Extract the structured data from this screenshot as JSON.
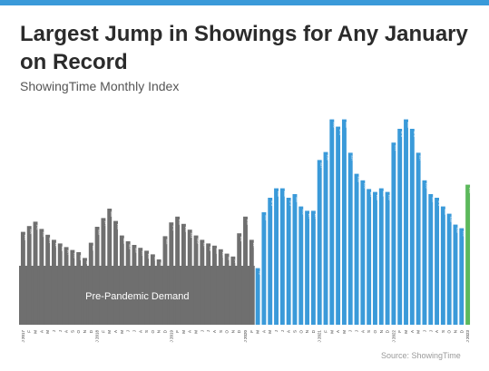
{
  "title": "Largest Jump in Showings for Any January on Record",
  "subtitle": "ShowingTime Monthly Index",
  "source": "Source: ShowingTime",
  "colors": {
    "accent_bar": "#3a9ad9",
    "pre_pandemic": "#6f6f6f",
    "pandemic": "#3a9ad9",
    "latest": "#5cb85c",
    "band": "#6f6f6f"
  },
  "chart_data": {
    "type": "bar",
    "annotations": [
      "Pre-Pandemic Demand"
    ],
    "categories": [
      "J 2017",
      "F",
      "M",
      "A",
      "M",
      "J",
      "J",
      "A",
      "S",
      "O",
      "N",
      "D",
      "J 2018",
      "F",
      "M",
      "A",
      "M",
      "J",
      "J",
      "A",
      "S",
      "O",
      "N",
      "D",
      "J 2019",
      "F",
      "M",
      "A",
      "M",
      "J",
      "J",
      "A",
      "S",
      "O",
      "N",
      "D",
      "J 2020",
      "F",
      "M",
      "A",
      "M",
      "J",
      "J",
      "A",
      "S",
      "O",
      "N",
      "D",
      "J 2021",
      "F",
      "M",
      "A",
      "M",
      "J",
      "J",
      "A",
      "S",
      "O",
      "N",
      "D",
      "J 2022",
      "F",
      "M",
      "A",
      "M",
      "J",
      "J",
      "A",
      "S",
      "O",
      "N",
      "D",
      "J 2023"
    ],
    "values": [
      128,
      136,
      142,
      132,
      124,
      117,
      112,
      107,
      103,
      100,
      92,
      113,
      135,
      147,
      160,
      143,
      123,
      115,
      110,
      106,
      102,
      97,
      90,
      122,
      141,
      149,
      139,
      131,
      123,
      117,
      112,
      109,
      104,
      98,
      94,
      126,
      149,
      117,
      78,
      155,
      175,
      188,
      188,
      175,
      180,
      163,
      157,
      157,
      227,
      238,
      283,
      273,
      283,
      237,
      208,
      199,
      187,
      183,
      188,
      183,
      251,
      270,
      283,
      270,
      237,
      199,
      180,
      175,
      163,
      153,
      138,
      133,
      193
    ],
    "segments": {
      "pre_pandemic_count": 38,
      "latest_count": 1
    },
    "ylim": [
      0,
      300
    ],
    "legend": "none",
    "grid": false
  }
}
